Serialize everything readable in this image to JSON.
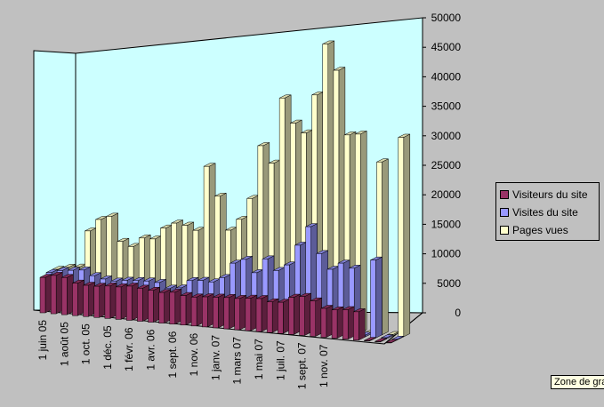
{
  "chart_data": {
    "type": "bar",
    "title": "",
    "xlabel": "",
    "ylabel": "",
    "ylim": [
      0,
      50000
    ],
    "yticks": [
      "0",
      "5000",
      "10000",
      "15000",
      "20000",
      "25000",
      "30000",
      "35000",
      "40000",
      "45000",
      "50000"
    ],
    "xtick_labels": [
      "1 juin 05",
      "1 août 05",
      "1 oct. 05",
      "1 déc. 05",
      "1 févr. 06",
      "1 avr. 06",
      "1 sept. 06",
      "1 nov. 06",
      "1 janv. 07",
      "1 mars 07",
      "1 mai 07",
      "1 juil. 07",
      "1 sept. 07",
      "1 nov. 07"
    ],
    "legend_position": "right",
    "grid": false,
    "series": [
      {
        "name": "Visiteurs du site",
        "color": "#993366",
        "values": [
          6000,
          6500,
          6300,
          5500,
          5300,
          5300,
          5500,
          5500,
          5800,
          5600,
          5400,
          5200,
          5400,
          5000,
          4900,
          5100,
          5200,
          5300,
          5300,
          5500,
          5600,
          5200,
          5300,
          6300,
          6600,
          6000,
          4900,
          4800,
          5000,
          4800,
          100,
          100,
          50
        ]
      },
      {
        "name": "Visites du site",
        "color": "#9999ff",
        "values": [
          6300,
          6800,
          7000,
          7200,
          6400,
          6000,
          5800,
          6100,
          6200,
          6300,
          6200,
          5400,
          5600,
          7000,
          7200,
          7100,
          8000,
          10600,
          11400,
          9300,
          11800,
          10000,
          11100,
          14600,
          17900,
          13500,
          11000,
          12200,
          11500,
          300,
          13200,
          200,
          100
        ]
      },
      {
        "name": "Pages vues",
        "color": "#ffffcc",
        "values": [
          6300,
          6800,
          7000,
          13300,
          15400,
          16100,
          12000,
          11300,
          12900,
          12900,
          14900,
          15900,
          15700,
          15000,
          26000,
          21100,
          15500,
          17500,
          21200,
          30300,
          27500,
          38700,
          34600,
          33100,
          39700,
          48500,
          44200,
          33400,
          33700,
          300,
          29300,
          200,
          33800
        ]
      }
    ]
  },
  "legend": {
    "items": [
      {
        "label": "Visiteurs du site",
        "color": "#993366"
      },
      {
        "label": "Visites du site",
        "color": "#9999ff"
      },
      {
        "label": "Pages vues",
        "color": "#ffffcc"
      }
    ]
  },
  "tooltip": {
    "text": "Zone de graphique"
  },
  "colors": {
    "background": "#c0c0c0",
    "walls": "#ccffff",
    "floor": "#c0c0c0"
  }
}
